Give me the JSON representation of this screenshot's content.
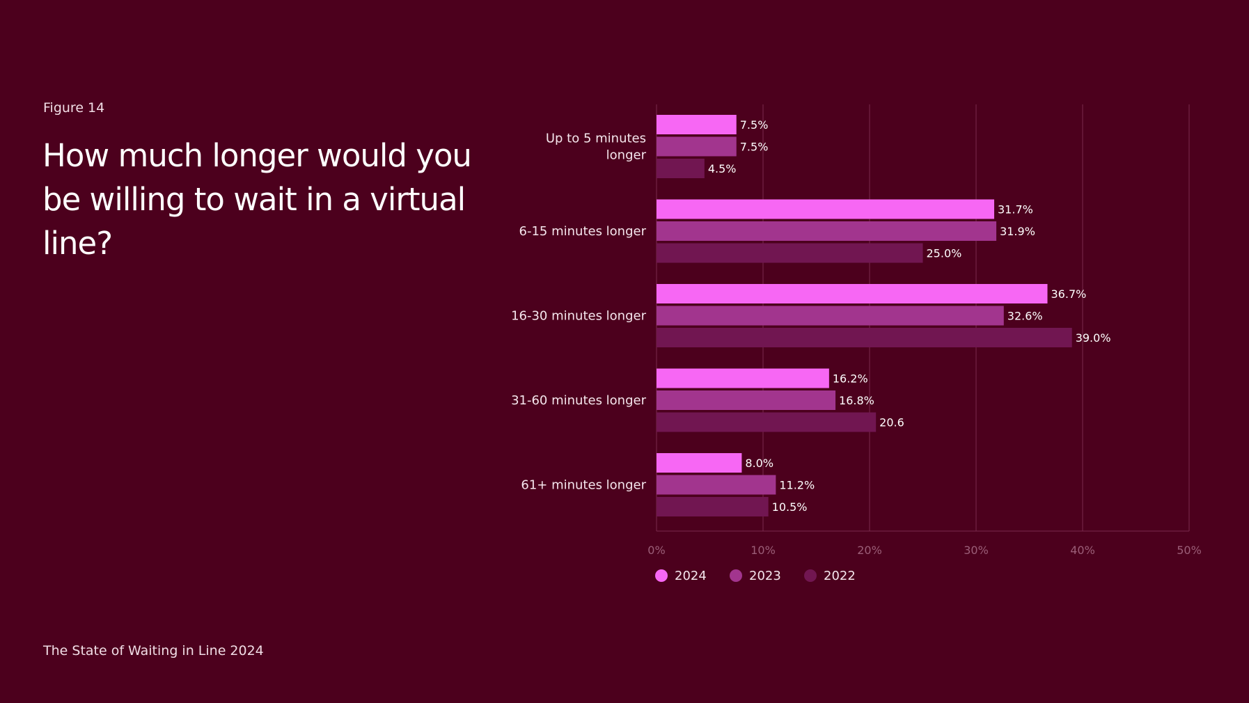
{
  "figure_label": "Figure 14",
  "footer": "The State of Waiting in Line 2024",
  "colors": {
    "background": "#4c001d",
    "series_2024": "#f767f4",
    "series_2023": "#a2358e",
    "series_2022": "#711651",
    "grid": "#7a2a4d",
    "tick": "#9b5e78"
  },
  "chart_data": {
    "type": "bar",
    "orientation": "horizontal",
    "title": "How much longer would you be willing to wait in a virtual line?",
    "categories": [
      [
        "Up to 5 minutes",
        "longer"
      ],
      [
        "6-15 minutes longer"
      ],
      [
        "16-30 minutes longer"
      ],
      [
        "31-60 minutes longer"
      ],
      [
        "61+ minutes longer"
      ]
    ],
    "series": [
      {
        "name": "2024",
        "values": [
          7.5,
          31.7,
          36.7,
          16.2,
          8.0
        ],
        "labels": [
          "7.5%",
          "31.7%",
          "36.7%",
          "16.2%",
          "8.0%"
        ]
      },
      {
        "name": "2023",
        "values": [
          7.5,
          31.9,
          32.6,
          16.8,
          11.2
        ],
        "labels": [
          "7.5%",
          "31.9%",
          "32.6%",
          "16.8%",
          "11.2%"
        ]
      },
      {
        "name": "2022",
        "values": [
          4.5,
          25.0,
          39.0,
          20.6,
          10.5
        ],
        "labels": [
          "4.5%",
          "25.0%",
          "39.0%",
          "20.6",
          "10.5%"
        ]
      }
    ],
    "xlim": [
      0,
      50
    ],
    "ticks": [
      "0%",
      "10%",
      "20%",
      "30%",
      "40%",
      "50%"
    ],
    "grid": true,
    "legend": "bottom-left"
  }
}
